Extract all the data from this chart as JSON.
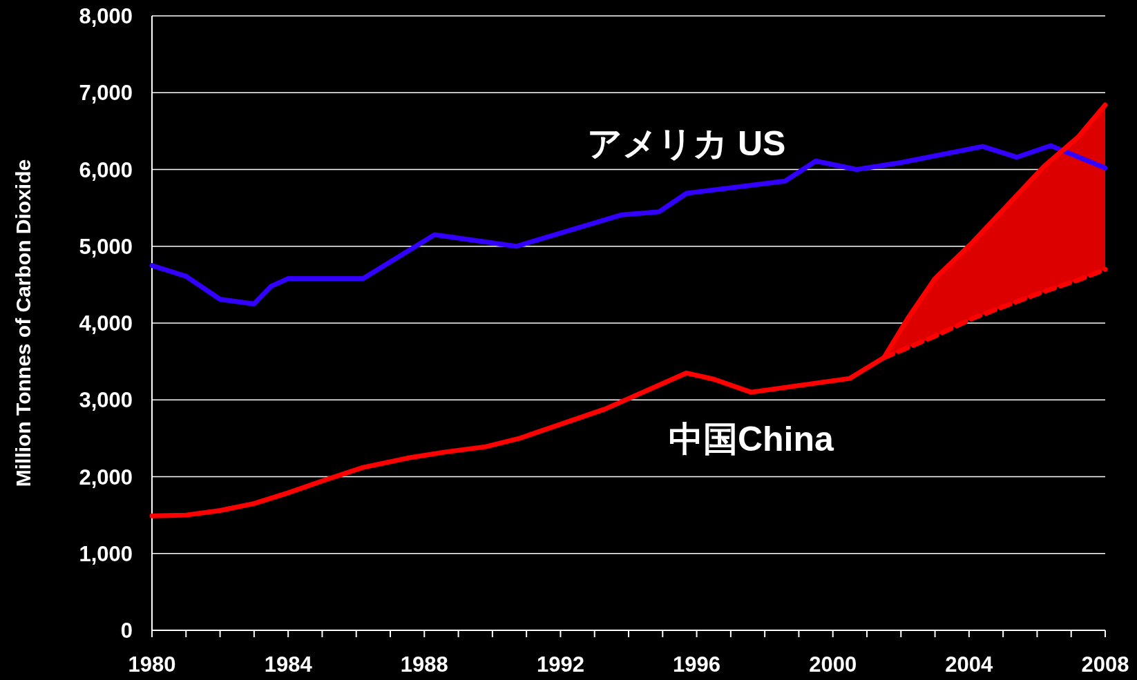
{
  "chart_data": {
    "type": "line",
    "ylabel": "Million Tonnes of Carbon Dioxide",
    "xlim": [
      1980,
      2008
    ],
    "ylim": [
      0,
      8000
    ],
    "xticks": [
      1980,
      {
        "value": 1981,
        "label": null
      },
      {
        "value": 1982,
        "label": null
      },
      {
        "value": 1983,
        "label": null
      },
      1984,
      {
        "value": 1985,
        "label": null
      },
      {
        "value": 1986,
        "label": null
      },
      {
        "value": 1987,
        "label": null
      },
      1988,
      {
        "value": 1989,
        "label": null
      },
      {
        "value": 1990,
        "label": null
      },
      {
        "value": 1991,
        "label": null
      },
      1992,
      {
        "value": 1993,
        "label": null
      },
      {
        "value": 1994,
        "label": null
      },
      {
        "value": 1995,
        "label": null
      },
      1996,
      {
        "value": 1997,
        "label": null
      },
      {
        "value": 1998,
        "label": null
      },
      {
        "value": 1999,
        "label": null
      },
      2000,
      {
        "value": 2001,
        "label": null
      },
      {
        "value": 2002,
        "label": null
      },
      {
        "value": 2003,
        "label": null
      },
      2004,
      {
        "value": 2005,
        "label": null
      },
      {
        "value": 2006,
        "label": null
      },
      {
        "value": 2007,
        "label": null
      },
      2008
    ],
    "yticks": [
      {
        "value": 0,
        "label": "0"
      },
      {
        "value": 1000,
        "label": "1,000"
      },
      {
        "value": 2000,
        "label": "2,000"
      },
      {
        "value": 3000,
        "label": "3,000"
      },
      {
        "value": 4000,
        "label": "4,000"
      },
      {
        "value": 5000,
        "label": "5,000"
      },
      {
        "value": 6000,
        "label": "6,000"
      },
      {
        "value": 7000,
        "label": "7,000"
      },
      {
        "value": 8000,
        "label": "8,000"
      }
    ],
    "grid": "y",
    "series": [
      {
        "name": "アメリカ US",
        "color": "#3300ff",
        "x": [
          1980,
          1981,
          1982,
          1983,
          1983.5,
          1984,
          1986.2,
          1988.3,
          1990.7,
          1993.8,
          1994.9,
          1995.7,
          1998.6,
          1999.5,
          2000.7,
          2002,
          2004.4,
          2005.4,
          2006.4,
          2008
        ],
        "values": [
          4750,
          4610,
          4310,
          4250,
          4480,
          4580,
          4580,
          5150,
          5000,
          5410,
          5450,
          5690,
          5850,
          6110,
          6000,
          6090,
          6300,
          6160,
          6310,
          6020
        ]
      },
      {
        "name": "中国China",
        "color": "#ff0000",
        "x": [
          1980,
          1981,
          1982,
          1983,
          1984,
          1985.1,
          1986.2,
          1987.6,
          1988.6,
          1989.8,
          1990.8,
          1993.3,
          1995.7,
          1996.5,
          1997.6,
          2000.5,
          2001.5
        ],
        "values": [
          1490,
          1500,
          1560,
          1650,
          1790,
          1960,
          2120,
          2250,
          2320,
          2390,
          2500,
          2880,
          3350,
          3270,
          3100,
          3280,
          3550
        ]
      },
      {
        "color": "#ff0000",
        "x": [
          2001.5,
          2002.2,
          2003.0,
          2004.1,
          2005.1,
          2006.2,
          2007.2,
          2008
        ],
        "values": [
          3550,
          4060,
          4580,
          5050,
          5520,
          6040,
          6420,
          6840
        ],
        "lower": [
          3550,
          3680,
          3830,
          4060,
          4230,
          4410,
          4560,
          4700
        ],
        "upper": [
          3550,
          4060,
          4580,
          5050,
          5520,
          6040,
          6420,
          6840
        ]
      },
      {
        "color": "#ff0000",
        "line_style": "dashed",
        "x": [
          2001.5,
          2002.2,
          2003.0,
          2004.1,
          2005.1,
          2006.2,
          2007.2,
          2008
        ],
        "values": [
          3550,
          3680,
          3830,
          4060,
          4230,
          4410,
          4560,
          4700
        ]
      }
    ]
  }
}
